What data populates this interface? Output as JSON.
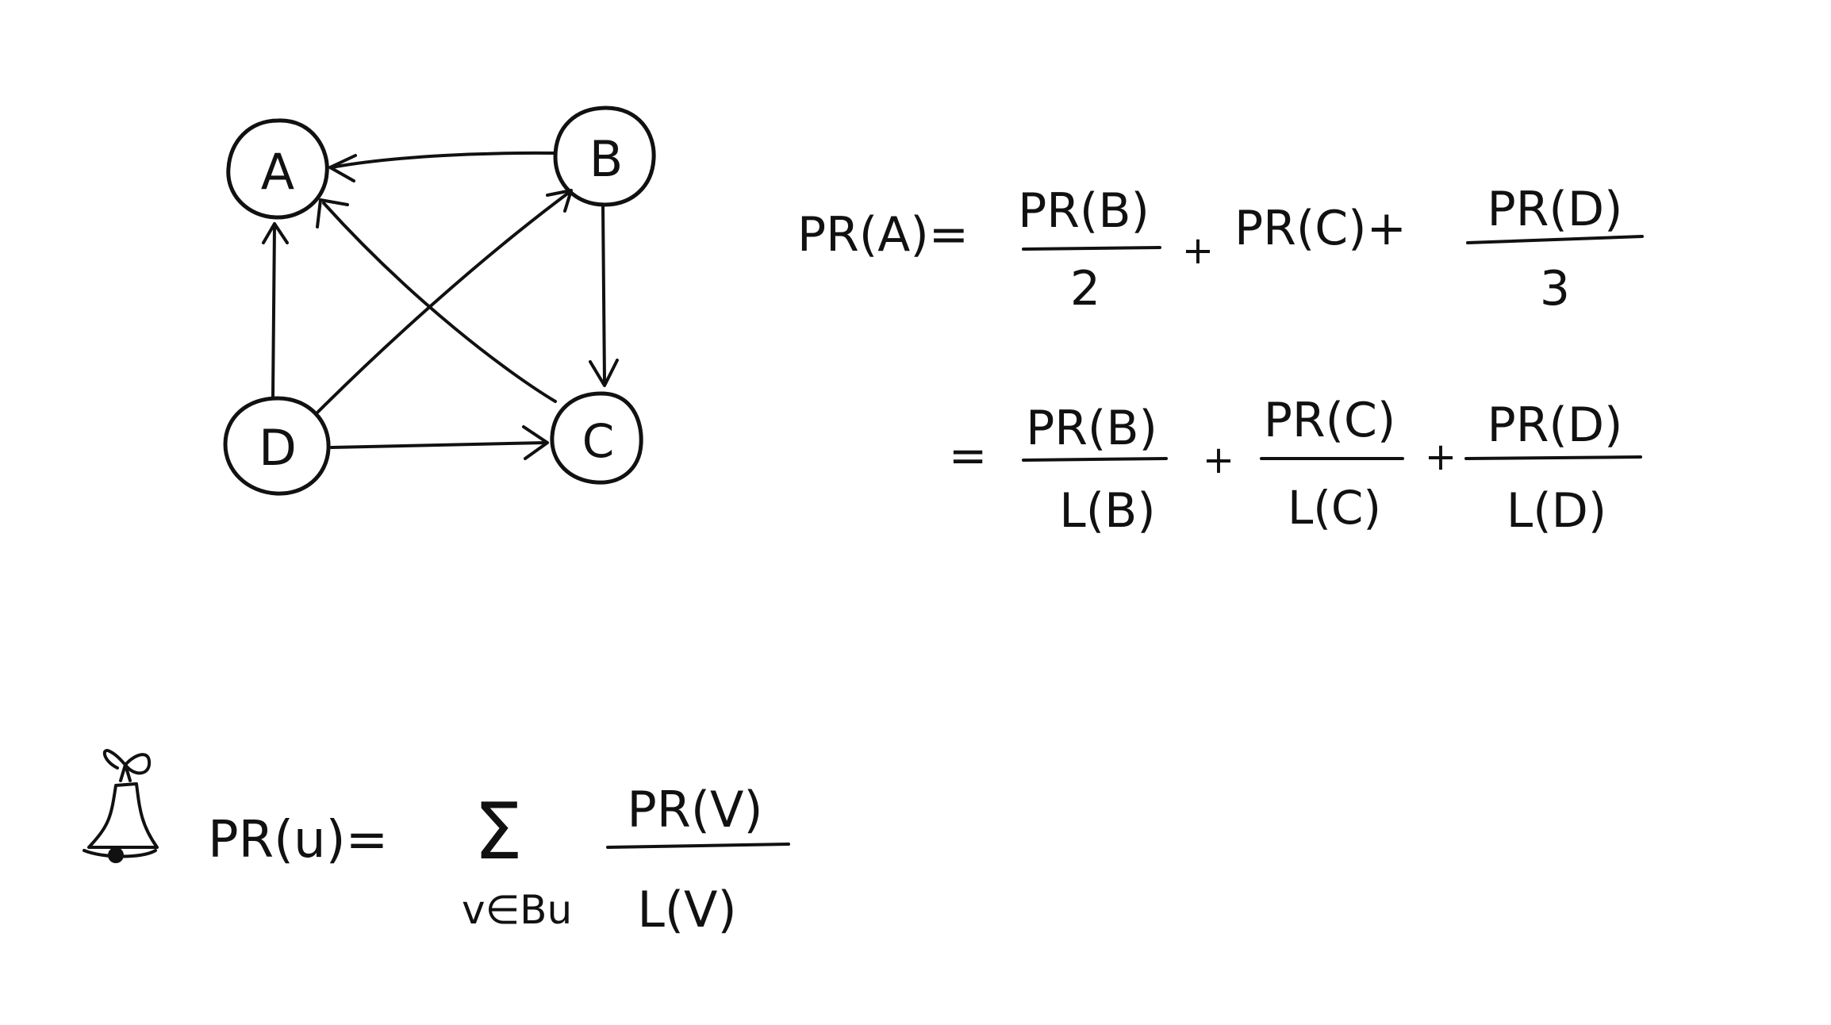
{
  "graph": {
    "nodes": [
      {
        "id": "A",
        "label": "A"
      },
      {
        "id": "B",
        "label": "B"
      },
      {
        "id": "C",
        "label": "C"
      },
      {
        "id": "D",
        "label": "D"
      }
    ],
    "edges": [
      {
        "from": "B",
        "to": "A"
      },
      {
        "from": "B",
        "to": "C"
      },
      {
        "from": "C",
        "to": "A"
      },
      {
        "from": "D",
        "to": "A"
      },
      {
        "from": "D",
        "to": "B"
      },
      {
        "from": "D",
        "to": "C"
      }
    ]
  },
  "equation1": {
    "lhs": "PR(A)=",
    "term1_num": "PR(B)",
    "term1_den": "2",
    "plus1": "+",
    "term2": "PR(C)+",
    "term3_num": "PR(D)",
    "term3_den": "3"
  },
  "equation2": {
    "eq": "=",
    "term1_num": "PR(B)",
    "term1_den": "L(B)",
    "plus1": "+",
    "term2_num": "PR(C)",
    "term2_den": "L(C)",
    "plus2": "+",
    "term3_num": "PR(D)",
    "term3_den": "L(D)"
  },
  "formula": {
    "icon": "bell-icon",
    "lhs": "PR(u)=",
    "sigma": "Σ",
    "subscript": "v∈Bu",
    "num": "PR(V)",
    "den": "L(V)"
  }
}
